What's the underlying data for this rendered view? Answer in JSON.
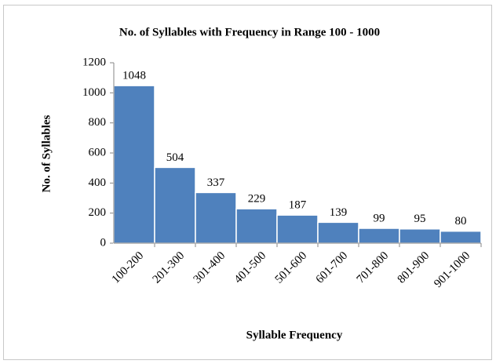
{
  "chart_data": {
    "type": "bar",
    "title": "No. of Syllables with Frequency in Range 100 - 1000",
    "x_label": "Syllable Frequency",
    "y_label": "No. of Syllables",
    "categories": [
      "100-200",
      "201-300",
      "301-400",
      "401-500",
      "501-600",
      "601-700",
      "701-800",
      "801-900",
      "901-1000"
    ],
    "values": [
      1048,
      504,
      337,
      229,
      187,
      139,
      99,
      95,
      80
    ],
    "color": "#4f81bd",
    "ylim": [
      0,
      1200
    ],
    "yticks": [
      0,
      200,
      400,
      600,
      800,
      1000,
      1200
    ],
    "grid": false,
    "data_labels": true
  }
}
